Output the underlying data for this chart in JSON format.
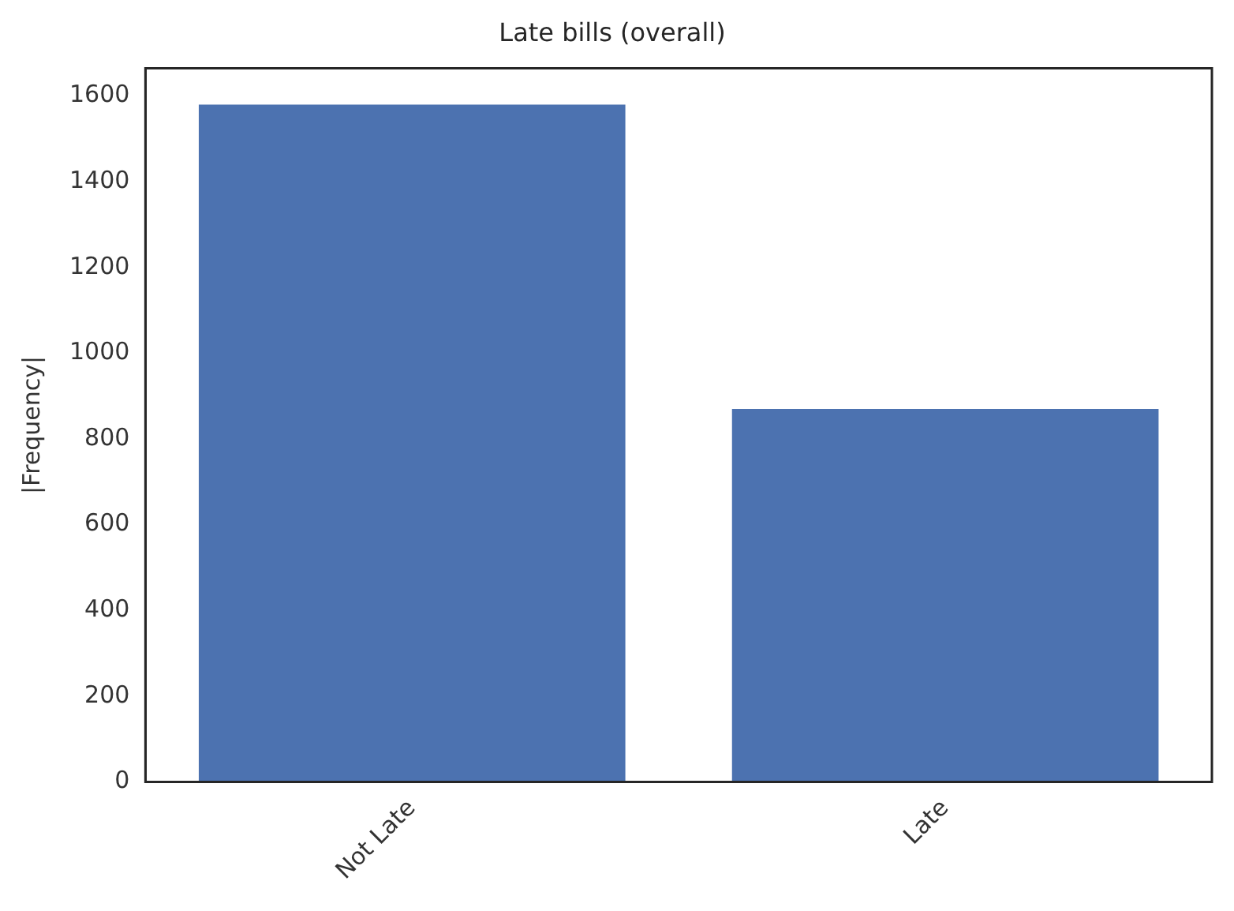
{
  "chart_data": {
    "type": "bar",
    "title": "Late bills (overall)",
    "ylabel": "|Frequency|",
    "categories": [
      "Not Late",
      "Late"
    ],
    "values": [
      1580,
      870
    ],
    "color": "#4c72b0",
    "ylim": [
      0,
      1665
    ],
    "yticks": [
      0,
      200,
      400,
      600,
      800,
      1000,
      1200,
      1400,
      1600
    ],
    "grid": false
  }
}
